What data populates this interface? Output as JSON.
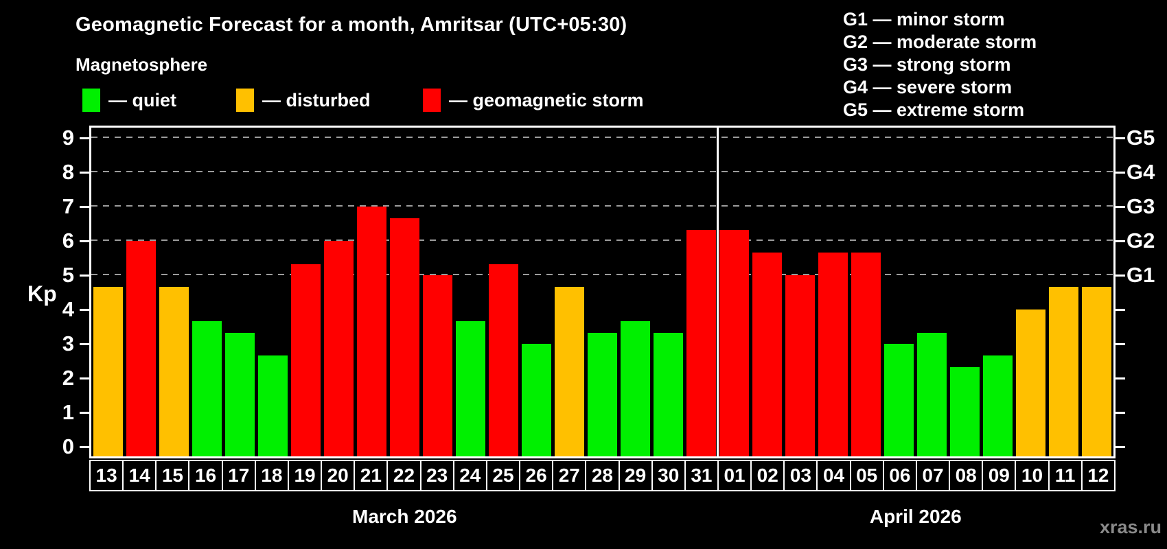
{
  "title": "Geomagnetic Forecast for a month, Amritsar (UTC+05:30)",
  "subtitle": "Magnetosphere",
  "legend": {
    "quiet_label": "— quiet",
    "disturbed_label": "— disturbed",
    "storm_label": "— geomagnetic storm"
  },
  "g_scale_legend": [
    "G1 — minor storm",
    "G2 — moderate storm",
    "G3 — strong storm",
    "G4 — severe storm",
    "G5 — extreme storm"
  ],
  "watermark": "xras.ru",
  "colors": {
    "quiet": "#00f000",
    "disturbed": "#ffc000",
    "storm": "#ff0000",
    "background": "#000000",
    "text": "#ffffff",
    "gridline": "#9c9c9c",
    "axis": "#ffffff",
    "watermark": "#8a8a8a"
  },
  "chart_data": {
    "type": "bar",
    "title": "Geomagnetic Forecast for a month, Amritsar (UTC+05:30)",
    "xlabel": "",
    "ylabel": "Kp",
    "ylim": [
      0,
      9
    ],
    "y_ticks": [
      0,
      1,
      2,
      3,
      4,
      5,
      6,
      7,
      8,
      9
    ],
    "gridlines_at": [
      5,
      6,
      7,
      8,
      9
    ],
    "grid": "horizontal dashed at storm levels only",
    "legend_position": "top",
    "right_axis_labels": {
      "5": "G1",
      "6": "G2",
      "7": "G3",
      "8": "G4",
      "9": "G5"
    },
    "months": [
      {
        "label": "March 2026",
        "days": [
          "13",
          "14",
          "15",
          "16",
          "17",
          "18",
          "19",
          "20",
          "21",
          "22",
          "23",
          "24",
          "25",
          "26",
          "27",
          "28",
          "29",
          "30",
          "31"
        ]
      },
      {
        "label": "April 2026",
        "days": [
          "01",
          "02",
          "03",
          "04",
          "05",
          "06",
          "07",
          "08",
          "09",
          "10",
          "11",
          "12"
        ]
      }
    ],
    "values": [
      4.67,
      6.0,
      4.67,
      3.67,
      3.33,
      2.67,
      5.33,
      6.0,
      7.0,
      6.67,
      5.0,
      3.67,
      5.33,
      3.0,
      4.67,
      3.33,
      3.67,
      3.33,
      6.33,
      6.33,
      5.67,
      5.0,
      5.67,
      5.67,
      3.0,
      3.33,
      2.33,
      2.67,
      4.0,
      4.67,
      4.67
    ],
    "color_rule": {
      "quiet": "Kp < 4",
      "disturbed": "4 <= Kp < 5",
      "storm": "Kp >= 5"
    }
  }
}
